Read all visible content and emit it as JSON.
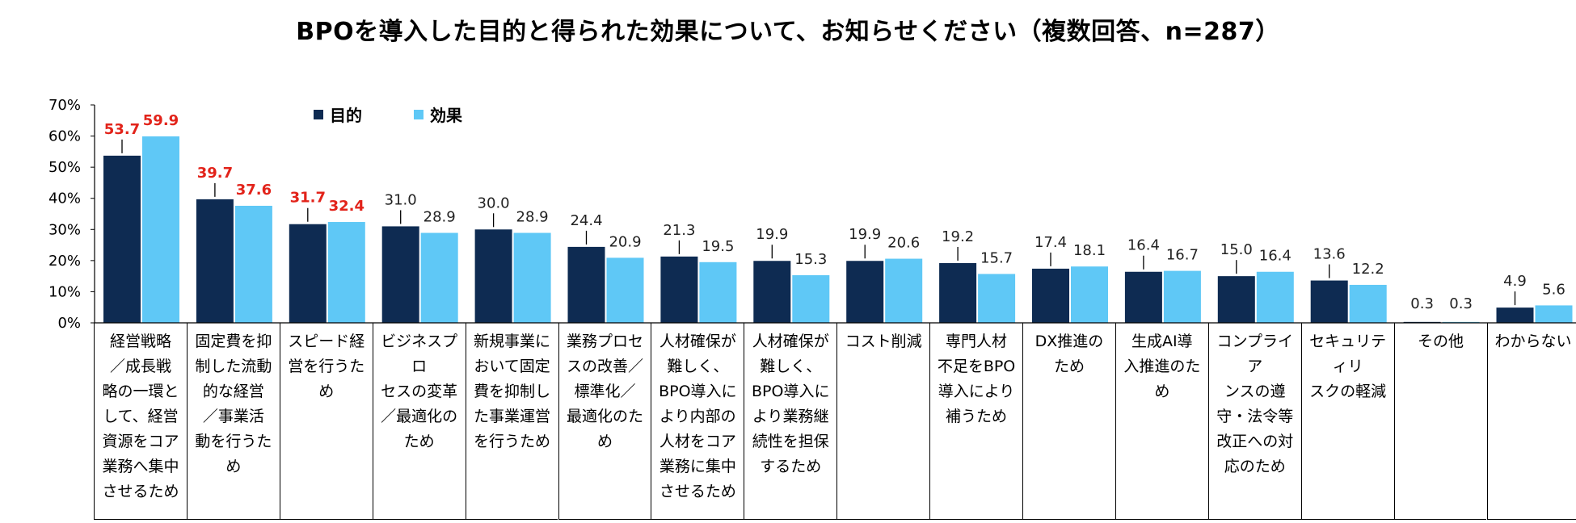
{
  "chart_data": {
    "type": "bar",
    "title": "BPOを導入した目的と得られた効果について、お知らせください（複数回答、n=287）",
    "xlabel": "",
    "ylabel": "",
    "ylim": [
      0,
      70
    ],
    "yticks": [
      "0%",
      "10%",
      "20%",
      "30%",
      "40%",
      "50%",
      "60%",
      "70%"
    ],
    "legend_position": "top-left",
    "categories": [
      [
        "経営戦略",
        "／成長戦",
        "略の一環と",
        "して、経営",
        "資源をコア",
        "業務へ集中",
        "させるため"
      ],
      [
        "固定費を抑",
        "制した流動",
        "的な経営",
        "／事業活",
        "動を行うた",
        "め"
      ],
      [
        "スピード経",
        "営を行うた",
        "め"
      ],
      [
        "ビジネスプロ",
        "セスの変革",
        "／最適化の",
        "ため"
      ],
      [
        "新規事業に",
        "おいて固定",
        "費を抑制し",
        "た事業運営",
        "を行うため"
      ],
      [
        "業務プロセ",
        "スの改善／",
        "標準化／",
        "最適化のた",
        "め"
      ],
      [
        "人材確保が",
        "難しく、",
        "BPO導入に",
        "より内部の",
        "人材をコア",
        "業務に集中",
        "させるため"
      ],
      [
        "人材確保が",
        "難しく、",
        "BPO導入に",
        "より業務継",
        "続性を担保",
        "するため"
      ],
      [
        "コスト削減"
      ],
      [
        "専門人材",
        "不足をBPO",
        "導入により",
        "補うため"
      ],
      [
        "DX推進の",
        "ため"
      ],
      [
        "生成AI導",
        "入推進のた",
        "め"
      ],
      [
        "コンプライア",
        "ンスの遵",
        "守・法令等",
        "改正への対",
        "応のため"
      ],
      [
        "セキュリティリ",
        "スクの軽減"
      ],
      [
        "その他"
      ],
      [
        "わからない"
      ]
    ],
    "series": [
      {
        "name": "目的",
        "color": "#0e2b52",
        "values": [
          53.7,
          39.7,
          31.7,
          31.0,
          30.0,
          24.4,
          21.3,
          19.9,
          19.9,
          19.2,
          17.4,
          16.4,
          15.0,
          13.6,
          0.3,
          4.9
        ],
        "labels": [
          "53.7",
          "39.7",
          "31.7",
          "31.0",
          "30.0",
          "24.4",
          "21.3",
          "19.9",
          "19.9",
          "19.2",
          "17.4",
          "16.4",
          "15.0",
          "13.6",
          "0.3",
          "4.9"
        ]
      },
      {
        "name": "効果",
        "color": "#5fc8f6",
        "values": [
          59.9,
          37.6,
          32.4,
          28.9,
          28.9,
          20.9,
          19.5,
          15.3,
          20.6,
          15.7,
          18.1,
          16.7,
          16.4,
          12.2,
          0.3,
          5.6
        ],
        "labels": [
          "59.9",
          "37.6",
          "32.4",
          "28.9",
          "28.9",
          "20.9",
          "19.5",
          "15.3",
          "20.6",
          "15.7",
          "18.1",
          "16.7",
          "16.4",
          "12.2",
          "0.3",
          "5.6"
        ]
      }
    ],
    "highlight_color": "#e2231a",
    "highlighted_categories": [
      0,
      1,
      2
    ]
  }
}
